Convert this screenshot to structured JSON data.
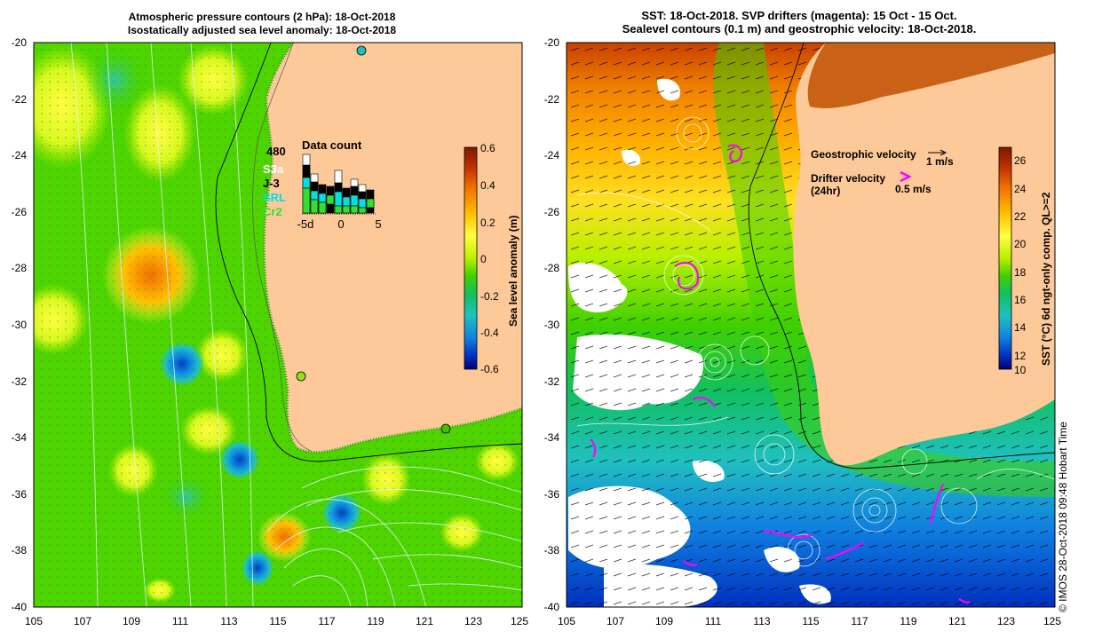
{
  "left_panel": {
    "title_line1": "Atmospheric pressure contours (2 hPa): 18-Oct-2018",
    "title_line2": "Isostatically adjusted sea level anomaly: 18-Oct-2018",
    "y_ticks": [
      "-20",
      "-22",
      "-24",
      "-26",
      "-28",
      "-30",
      "-32",
      "-34",
      "-36",
      "-38",
      "-40"
    ],
    "x_ticks": [
      "105",
      "107",
      "109",
      "111",
      "113",
      "115",
      "117",
      "119",
      "121",
      "123",
      "125"
    ],
    "colorbar": {
      "label": "Sea level anomaly (m)",
      "ticks": [
        "0.6",
        "0.4",
        "0.2",
        "0",
        "-0.2",
        "-0.4",
        "-0.6"
      ],
      "colors": [
        "#7a1a00",
        "#c03000",
        "#f07000",
        "#ffc000",
        "#ffff40",
        "#b8f000",
        "#40d000",
        "#10c060",
        "#20c0c0",
        "#1080e0",
        "#0030c0",
        "#000070"
      ]
    },
    "data_count": {
      "title": "Data count",
      "max": "480",
      "missions": [
        {
          "name": "S3a",
          "color": "#ffffff"
        },
        {
          "name": "J-3",
          "color": "#000000"
        },
        {
          "name": "SRL",
          "color": "#00e0e0"
        },
        {
          "name": "Cr2",
          "color": "#30e030"
        }
      ],
      "x_ticks": [
        "-5d",
        "0",
        "5"
      ]
    }
  },
  "right_panel": {
    "title_line1": "SST: 18-Oct-2018. SVP drifters (magenta): 15 Oct - 15 Oct.",
    "title_line2": "Sealevel contours (0.1 m) and geostrophic velocity: 18-Oct-2018.",
    "y_ticks": [
      "-20",
      "-22",
      "-24",
      "-26",
      "-28",
      "-30",
      "-32",
      "-34",
      "-36",
      "-38",
      "-40"
    ],
    "x_ticks": [
      "105",
      "107",
      "109",
      "111",
      "113",
      "115",
      "117",
      "119",
      "121",
      "123",
      "125"
    ],
    "legend": {
      "geo_label": "Geostrophic velocity",
      "geo_scale": "1 m/s",
      "drifter_label": "Drifter velocity",
      "drifter_sub": "(24hr)",
      "drifter_scale": "0.5 m/s"
    },
    "colorbar": {
      "label": "SST (°C) 6d ngt-only comp. QL>=2",
      "ticks": [
        "26",
        "24",
        "22",
        "20",
        "18",
        "16",
        "14",
        "12",
        "10"
      ],
      "colors": [
        "#7a1a00",
        "#c03000",
        "#f07000",
        "#ffc000",
        "#ffff40",
        "#b8f000",
        "#40d000",
        "#10c060",
        "#20c0c0",
        "#1080e0",
        "#0030c0",
        "#000070"
      ]
    }
  },
  "credit": "© IMOS 28-Oct-2018 09:48 Hobart Time"
}
